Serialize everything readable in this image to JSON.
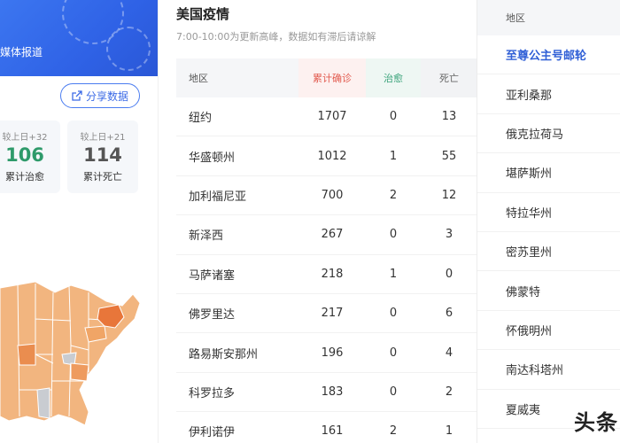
{
  "left": {
    "banner_text": "媒体报道",
    "share_label": "分享数据",
    "recover": {
      "delta": "较上日+32",
      "value": "106",
      "caption": "累计治愈"
    },
    "death": {
      "delta": "较上日+21",
      "value": "114",
      "caption": "累计死亡"
    }
  },
  "middle": {
    "title": "美国疫情",
    "subtitle": "7:00-10:00为更新高峰，数据如有滞后请谅解",
    "columns": {
      "region": "地区",
      "confirmed": "累计确诊",
      "cured": "治愈",
      "death": "死亡"
    },
    "rows": [
      {
        "region": "纽约",
        "confirmed": "1707",
        "cured": "0",
        "death": "13"
      },
      {
        "region": "华盛顿州",
        "confirmed": "1012",
        "cured": "1",
        "death": "55"
      },
      {
        "region": "加利福尼亚",
        "confirmed": "700",
        "cured": "2",
        "death": "12"
      },
      {
        "region": "新泽西",
        "confirmed": "267",
        "cured": "0",
        "death": "3"
      },
      {
        "region": "马萨诸塞",
        "confirmed": "218",
        "cured": "1",
        "death": "0"
      },
      {
        "region": "佛罗里达",
        "confirmed": "217",
        "cured": "0",
        "death": "6"
      },
      {
        "region": "路易斯安那州",
        "confirmed": "196",
        "cured": "0",
        "death": "4"
      },
      {
        "region": "科罗拉多",
        "confirmed": "183",
        "cured": "0",
        "death": "2"
      },
      {
        "region": "伊利诺伊",
        "confirmed": "161",
        "cured": "2",
        "death": "1"
      }
    ]
  },
  "right": {
    "header": "地区",
    "items": [
      "至尊公主号邮轮",
      "亚利桑那",
      "俄克拉荷马",
      "堪萨斯州",
      "特拉华州",
      "密苏里州",
      "佛蒙特",
      "怀俄明州",
      "南达科塔州",
      "夏威夷"
    ]
  },
  "watermark": "头条",
  "colors": {
    "brand_blue": "#2f62e6",
    "confirmed_red": "#e25b4f",
    "cured_green": "#2e9a6a",
    "map_orange": "#f0a566",
    "map_dark": "#e8763a"
  }
}
